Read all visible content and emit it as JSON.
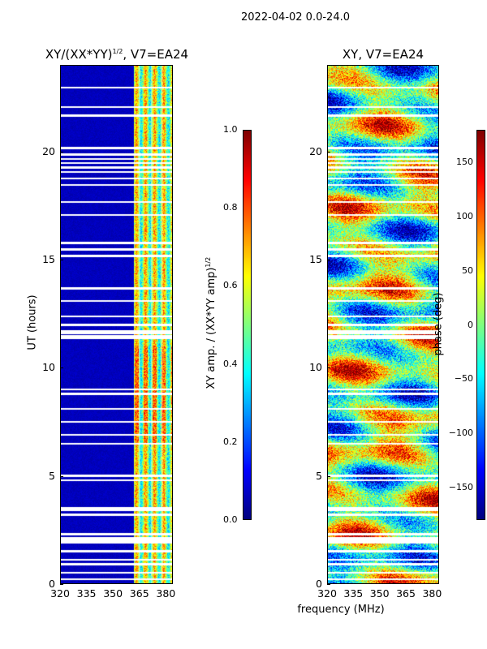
{
  "figure": {
    "suptitle": "2022-04-02 0.0-24.0",
    "xlabel_shared": "frequency (MHz)"
  },
  "chart_data": [
    {
      "type": "heatmap",
      "title_main": "XY/(XX*YY)",
      "title_sup": "1/2",
      "title_suffix": ", V7=EA24",
      "xlabel": "",
      "ylabel": "UT (hours)",
      "x_ticks": [
        "320",
        "335",
        "350",
        "365",
        "380"
      ],
      "x_tick_values": [
        320,
        335,
        350,
        365,
        380
      ],
      "xlim": [
        320,
        384
      ],
      "y_ticks": [
        "0",
        "5",
        "10",
        "15",
        "20"
      ],
      "y_tick_values": [
        0,
        5,
        10,
        15,
        20
      ],
      "ylim": [
        0,
        24
      ],
      "colorbar": {
        "label_main": "XY amp. / (XX*YY amp)",
        "label_sup": "1/2",
        "ticks": [
          "0.0",
          "0.2",
          "0.4",
          "0.6",
          "0.8",
          "1.0"
        ],
        "tick_values": [
          0.0,
          0.2,
          0.4,
          0.6,
          0.8,
          1.0
        ],
        "range": [
          0.0,
          1.0
        ],
        "colormap": "jet"
      },
      "gap_hours": [
        0.2,
        0.5,
        0.9,
        1.1,
        1.5,
        1.9,
        2.0,
        2.1,
        2.3,
        3.2,
        3.4,
        3.5,
        4.8,
        5.0,
        6.5,
        6.9,
        7.5,
        8.1,
        8.8,
        9.0,
        11.4,
        11.5,
        11.6,
        11.7,
        12.0,
        12.4,
        13.1,
        13.7,
        15.2,
        15.5,
        15.8,
        17.1,
        17.7,
        18.5,
        18.8,
        19.1,
        19.3,
        19.5,
        19.7,
        19.9,
        20.2,
        21.7,
        22.1,
        23.0
      ],
      "mean_level_by_freq_band": [
        {
          "band_mhz": [
            320,
            362
          ],
          "level": 0.05
        },
        {
          "band_mhz": [
            362,
            384
          ],
          "level": 0.45
        }
      ]
    },
    {
      "type": "heatmap",
      "title": "XY, V7=EA24",
      "xlabel": "frequency (MHz)",
      "ylabel": "",
      "x_ticks": [
        "320",
        "335",
        "350",
        "365",
        "380"
      ],
      "x_tick_values": [
        320,
        335,
        350,
        365,
        380
      ],
      "xlim": [
        320,
        384
      ],
      "y_ticks": [
        "0",
        "5",
        "10",
        "15",
        "20"
      ],
      "y_tick_values": [
        0,
        5,
        10,
        15,
        20
      ],
      "ylim": [
        0,
        24
      ],
      "colorbar": {
        "label": "phase (deg)",
        "ticks": [
          "−150",
          "−100",
          "−50",
          "0",
          "50",
          "100",
          "150"
        ],
        "tick_values": [
          -150,
          -100,
          -50,
          0,
          50,
          100,
          150
        ],
        "range": [
          -180,
          180
        ],
        "colormap": "jet"
      },
      "gap_hours": [
        0.2,
        0.5,
        0.9,
        1.1,
        1.5,
        1.9,
        2.0,
        2.1,
        2.3,
        3.2,
        3.4,
        3.5,
        4.8,
        5.0,
        6.5,
        6.9,
        7.5,
        8.1,
        8.8,
        9.0,
        11.4,
        11.5,
        11.6,
        11.7,
        12.0,
        12.4,
        13.1,
        13.7,
        15.2,
        15.5,
        15.8,
        17.1,
        17.7,
        18.5,
        18.8,
        19.1,
        19.3,
        19.5,
        19.7,
        19.9,
        20.2,
        21.7,
        22.1,
        23.0
      ]
    }
  ]
}
